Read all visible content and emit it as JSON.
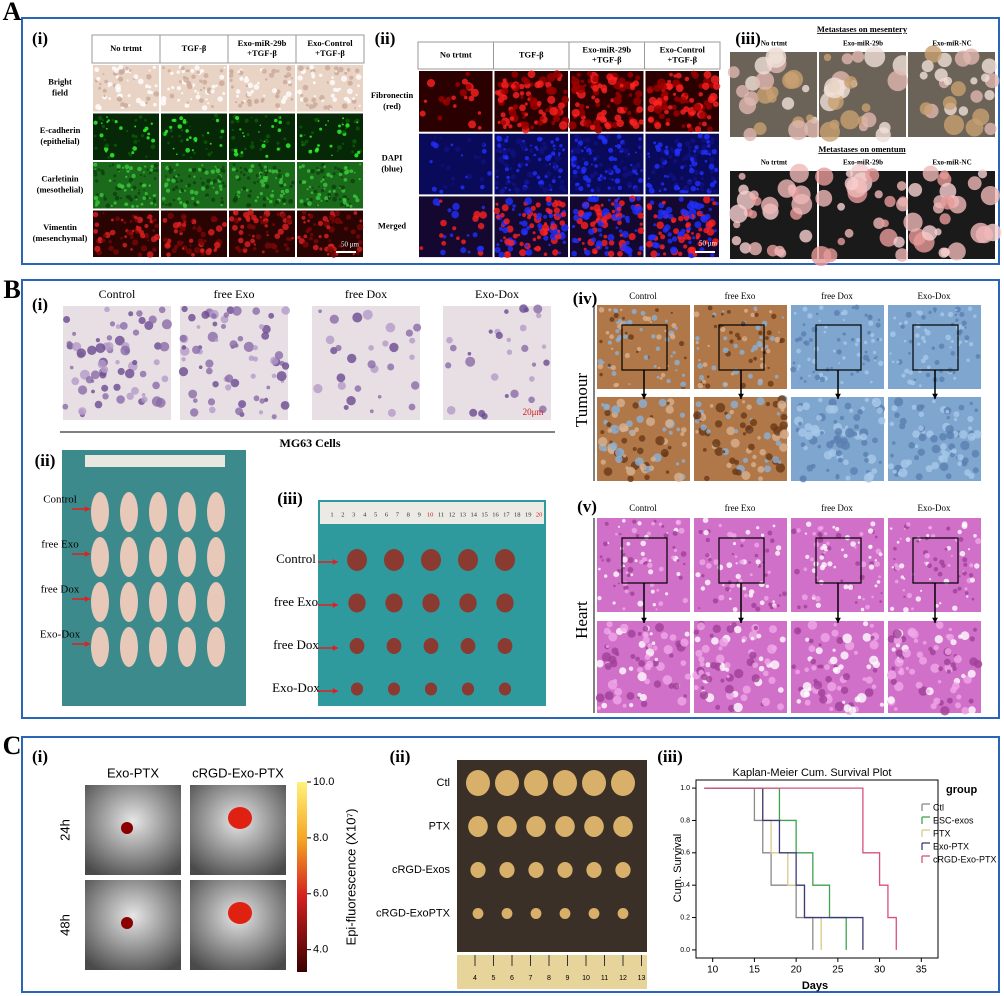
{
  "figure": {
    "A": {
      "label": "A",
      "i": {
        "label": "(i)",
        "columns": [
          [
            "No trtmt"
          ],
          [
            "TGF-β"
          ],
          [
            "Exo-miR-29b",
            "+TGF-β"
          ],
          [
            "Exo-Control",
            "+TGF-β"
          ]
        ],
        "rows": [
          [
            "Bright",
            "field"
          ],
          [
            "E-cadherin",
            "(epithelial)"
          ],
          [
            "Carletinin",
            "(mesothelial)"
          ],
          [
            "Vimentin",
            "(mesenchymal)"
          ]
        ],
        "scale_bar": "50 μm"
      },
      "ii": {
        "label": "(ii)",
        "columns": [
          [
            "No trtmt"
          ],
          [
            "TGF-β"
          ],
          [
            "Exo-miR-29b",
            "+TGF-β"
          ],
          [
            "Exo-Control",
            "+TGF-β"
          ]
        ],
        "rows": [
          [
            "Fibronectin",
            "(red)"
          ],
          [
            "DAPI",
            "(blue)"
          ],
          [
            "Merged"
          ]
        ],
        "scale_bar": "50 μm"
      },
      "iii": {
        "label": "(iii)",
        "mesentery": {
          "title": "Metastases on mesentery",
          "columns": [
            "No trtmt",
            "Exo-miR-29b",
            "Exo-miR-NC"
          ]
        },
        "omentum": {
          "title": "Metastases on omentum",
          "columns": [
            "No trtmt",
            "Exo-miR-29b",
            "Exo-miR-NC"
          ]
        }
      }
    },
    "B": {
      "label": "B",
      "i": {
        "label": "(i)",
        "columns": [
          "Control",
          "free Exo",
          "free Dox",
          "Exo-Dox"
        ],
        "scale_bar": "20μm",
        "caption": "MG63 Cells"
      },
      "ii": {
        "label": "(ii)",
        "rows": [
          "Control",
          "free Exo",
          "free Dox",
          "Exo-Dox"
        ]
      },
      "iii": {
        "label": "(iii)",
        "rows": [
          "Control",
          "free Exo",
          "free Dox",
          "Exo-Dox"
        ],
        "ruler": [
          1,
          2,
          3,
          4,
          5,
          6,
          7,
          8,
          9,
          10,
          11,
          12,
          13,
          14,
          15,
          16,
          17,
          18,
          19,
          20
        ]
      },
      "iv": {
        "label": "(iv)",
        "columns": [
          "Control",
          "free Exo",
          "free Dox",
          "Exo-Dox"
        ],
        "tissue": "Tumour"
      },
      "v": {
        "label": "(v)",
        "columns": [
          "Control",
          "free Exo",
          "free Dox",
          "Exo-Dox"
        ],
        "tissue": "Heart"
      }
    },
    "C": {
      "label": "C",
      "i": {
        "label": "(i)",
        "columns": [
          "Exo-PTX",
          "cRGD-Exo-PTX"
        ],
        "rows": [
          "24h",
          "48h"
        ],
        "colorbar": {
          "label": "Epi-fluorescence (X10⁷)",
          "lim": [
            3.2,
            10
          ],
          "ticks": [
            {
              "value": 10,
              "label": "10.0"
            },
            {
              "value": 8,
              "label": "8.0"
            },
            {
              "value": 6,
              "label": "6.0"
            },
            {
              "value": 4,
              "label": "4.0"
            }
          ]
        }
      },
      "ii": {
        "label": "(ii)",
        "rows": [
          "Ctl",
          "PTX",
          "cRGD-Exos",
          "cRGD-ExoPTX"
        ],
        "ruler": [
          4,
          5,
          6,
          7,
          8,
          9,
          10,
          11,
          12,
          13
        ]
      },
      "iii": {
        "label": "(iii)"
      }
    }
  },
  "chart_data": {
    "type": "line",
    "step": true,
    "title": "Kaplan-Meier Cum. Survival Plot",
    "xlabel": "Days",
    "ylabel": "Cum. Survival",
    "legend_title": "group",
    "xlim": [
      8,
      37
    ],
    "ylim": [
      -0.05,
      1.05
    ],
    "xticks": [
      10,
      15,
      20,
      25,
      30,
      35
    ],
    "yticks": [
      {
        "value": 0,
        "label": "0.0"
      },
      {
        "value": 0.2,
        "label": "0.2"
      },
      {
        "value": 0.4,
        "label": "0.4"
      },
      {
        "value": 0.6,
        "label": "0.6"
      },
      {
        "value": 0.8,
        "label": "0.8"
      },
      {
        "value": 1,
        "label": "1.0"
      }
    ],
    "series": [
      {
        "name": "Ctl",
        "color": "#8a8a8a",
        "x": [
          9,
          15,
          16,
          17,
          20,
          22
        ],
        "values": [
          1,
          0.8,
          0.6,
          0.4,
          0.2,
          0
        ]
      },
      {
        "name": "ESC-exos",
        "color": "#3fa34d",
        "x": [
          9,
          18,
          20,
          22,
          24,
          26
        ],
        "values": [
          1,
          0.8,
          0.6,
          0.4,
          0.2,
          0
        ]
      },
      {
        "name": "PTX",
        "color": "#d9c98a",
        "x": [
          9,
          16,
          17,
          19,
          21,
          23
        ],
        "values": [
          1,
          0.8,
          0.6,
          0.4,
          0.2,
          0
        ]
      },
      {
        "name": "Exo-PTX",
        "color": "#3b3b7a",
        "x": [
          9,
          16,
          18,
          20,
          21,
          28
        ],
        "values": [
          1,
          0.8,
          0.6,
          0.4,
          0.2,
          0
        ]
      },
      {
        "name": "cRGD-Exo-PTX",
        "color": "#d9507a",
        "x": [
          9,
          28,
          30,
          31,
          32
        ],
        "values": [
          1,
          0.6,
          0.4,
          0.2,
          0
        ]
      }
    ]
  }
}
